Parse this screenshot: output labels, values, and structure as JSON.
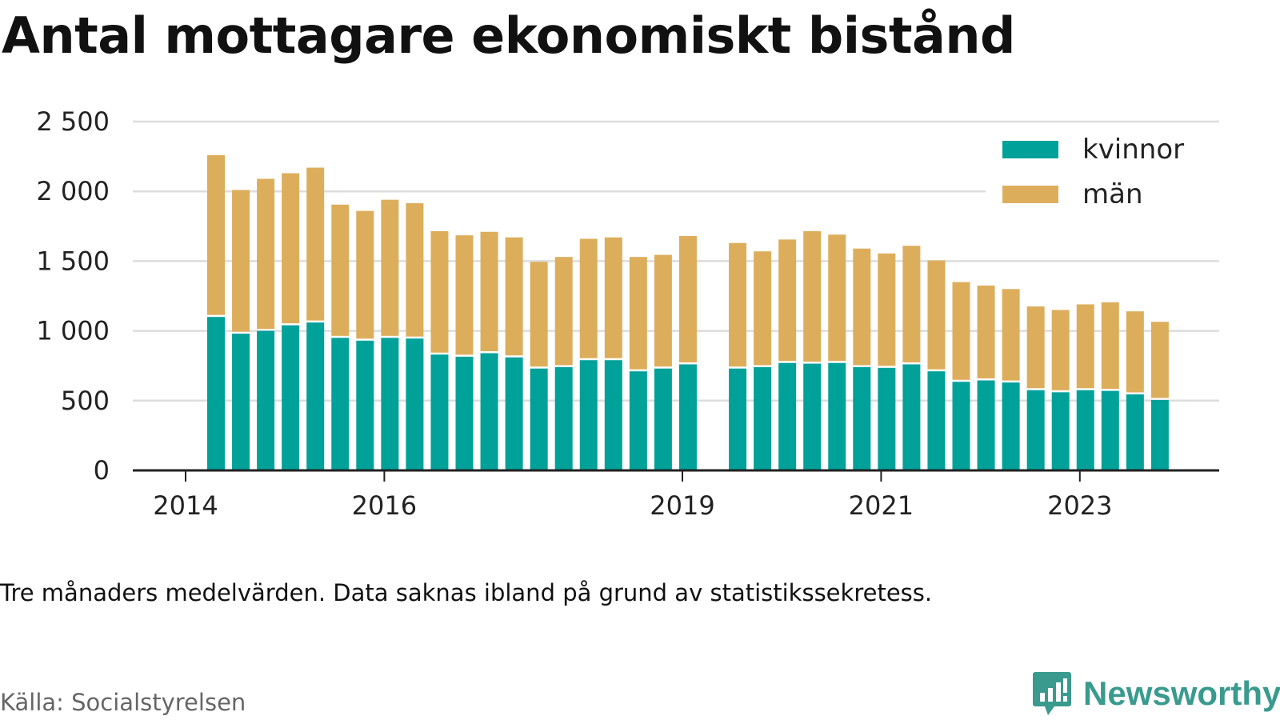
{
  "title": "Antal mottagare ekonomiskt bistånd",
  "note": "Tre månaders medelvärden. Data saknas ibland på grund av statistikssekretess.",
  "source": "Källa: Socialstyrelsen",
  "brand": {
    "name": "Newsworthy",
    "icon": "newsworthy-logo-icon"
  },
  "colors": {
    "kvinnor": "#00a199",
    "man": "#dcae5c",
    "grid": "#dddddd",
    "axis": "#222222"
  },
  "chart_data": {
    "type": "bar",
    "stacked": true,
    "ylim": [
      0,
      2500
    ],
    "yticks": [
      0,
      500,
      1000,
      1500,
      2000,
      2500
    ],
    "ytick_labels": [
      "0",
      "500",
      "1 000",
      "1 500",
      "2 000",
      "2 500"
    ],
    "xtick_labels": [
      "2014",
      "2016",
      "2019",
      "2021",
      "2023"
    ],
    "xtick_quarter_index": [
      0,
      8,
      20,
      28,
      36
    ],
    "legend_position": "top-right",
    "series": [
      {
        "name": "kvinnor",
        "values": [
          1100,
          980,
          1000,
          1040,
          1060,
          950,
          930,
          950,
          945,
          830,
          815,
          840,
          810,
          730,
          740,
          790,
          790,
          710,
          730,
          760,
          null,
          730,
          740,
          770,
          765,
          770,
          740,
          735,
          760,
          710,
          635,
          645,
          630,
          575,
          560,
          575,
          570,
          545,
          505
        ]
      },
      {
        "name": "män",
        "values": [
          1160,
          1030,
          1090,
          1090,
          1110,
          955,
          930,
          990,
          970,
          885,
          870,
          870,
          860,
          765,
          790,
          870,
          880,
          820,
          815,
          920,
          null,
          900,
          830,
          885,
          950,
          920,
          850,
          820,
          850,
          795,
          715,
          680,
          670,
          600,
          590,
          615,
          635,
          595,
          560
        ]
      }
    ]
  }
}
